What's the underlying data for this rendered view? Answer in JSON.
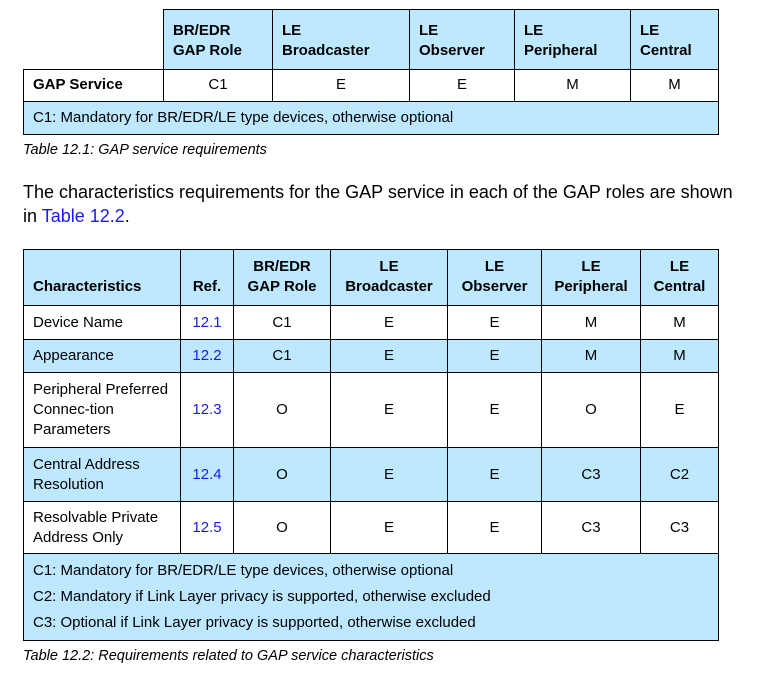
{
  "table1": {
    "headers": [
      "BR/EDR GAP Role",
      "LE Broadcaster",
      "LE Observer",
      "LE Peripheral",
      "LE Central"
    ],
    "headers_lines": [
      [
        "BR/EDR",
        "GAP Role"
      ],
      [
        "LE",
        "Broadcaster"
      ],
      [
        "LE",
        "Observer"
      ],
      [
        "LE",
        "Peripheral"
      ],
      [
        "LE",
        "Central"
      ]
    ],
    "row_label": "GAP Service",
    "row_values": [
      "C1",
      "E",
      "E",
      "M",
      "M"
    ],
    "note": "C1: Mandatory for BR/EDR/LE type devices, otherwise optional",
    "caption": "Table 12.1:  GAP service requirements"
  },
  "paragraph": {
    "text": "The characteristics requirements for the GAP service in each of the GAP roles are shown in ",
    "link": "Table 12.2",
    "end": "."
  },
  "table2": {
    "headers": [
      [
        "",
        "Characteristics"
      ],
      [
        "",
        "Ref."
      ],
      [
        "BR/EDR",
        "GAP Role"
      ],
      [
        "LE",
        "Broadcaster"
      ],
      [
        "LE",
        "Observer"
      ],
      [
        "LE",
        "Peripheral"
      ],
      [
        "LE",
        "Central"
      ]
    ],
    "rows": [
      {
        "name": "Device Name",
        "ref": "12.1",
        "values": [
          "C1",
          "E",
          "E",
          "M",
          "M"
        ]
      },
      {
        "name": "Appearance",
        "ref": "12.2",
        "values": [
          "C1",
          "E",
          "E",
          "M",
          "M"
        ]
      },
      {
        "name": "Peripheral Preferred Connec-tion Parameters",
        "ref": "12.3",
        "values": [
          "O",
          "E",
          "E",
          "O",
          "E"
        ]
      },
      {
        "name": "Central Address Resolution",
        "ref": "12.4",
        "values": [
          "O",
          "E",
          "E",
          "C3",
          "C2"
        ]
      },
      {
        "name": "Resolvable Private Address Only",
        "ref": "12.5",
        "values": [
          "O",
          "E",
          "E",
          "C3",
          "C3"
        ]
      }
    ],
    "notes": [
      "C1: Mandatory for BR/EDR/LE type devices, otherwise optional",
      "C2: Mandatory if Link Layer privacy is supported, otherwise excluded",
      "C3: Optional if Link Layer privacy is supported, otherwise excluded"
    ],
    "caption": "Table 12.2:  Requirements related to GAP service characteristics"
  },
  "colors": {
    "header_bg": "#bde8ff",
    "link": "#1a1aee"
  }
}
